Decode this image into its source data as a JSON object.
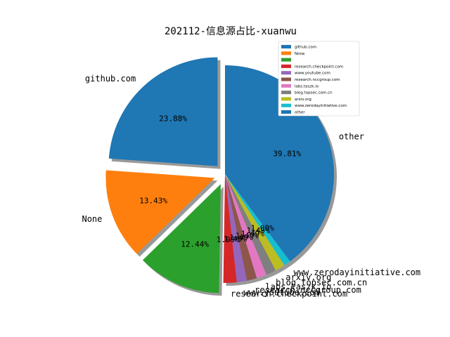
{
  "chart_data": {
    "type": "pie",
    "title": "202112-信息源占比-xuanwu",
    "legend_position": "upper-right",
    "slices": [
      {
        "label": "github.com",
        "pct_label": "23.88%",
        "value": 23.88,
        "color": "#1f77b4",
        "exploded": true
      },
      {
        "label": "None",
        "pct_label": "13.43%",
        "value": 13.43,
        "color": "#ff7f0e",
        "exploded": true
      },
      {
        "label": "",
        "pct_label": "12.44%",
        "value": 12.44,
        "color": "#2ca02c",
        "exploded": true
      },
      {
        "label": "research.checkpoint.com",
        "pct_label": "1.99%",
        "value": 1.99,
        "color": "#d62728",
        "exploded": false
      },
      {
        "label": "www.youtube.com",
        "pct_label": "1.49%",
        "value": 1.49,
        "color": "#9467bd",
        "exploded": false
      },
      {
        "label": "research.nccgroup.com",
        "pct_label": "1.49%",
        "value": 1.49,
        "color": "#8c564b",
        "exploded": false
      },
      {
        "label": "labs.taszk.io",
        "pct_label": "1.49%",
        "value": 1.49,
        "color": "#e377c2",
        "exploded": false
      },
      {
        "label": "blog.topsec.com.cn",
        "pct_label": "1.49%",
        "value": 1.49,
        "color": "#7f7f7f",
        "exploded": false
      },
      {
        "label": "arxiv.org",
        "pct_label": "1.49%",
        "value": 1.49,
        "color": "#bcbd22",
        "exploded": false
      },
      {
        "label": "www.zerodayinitiative.com",
        "pct_label": "1.00%",
        "value": 1.0,
        "color": "#17becf",
        "exploded": false
      },
      {
        "label": "other",
        "pct_label": "39.81%",
        "value": 39.81,
        "color": "#1f77b4",
        "exploded": false
      }
    ]
  }
}
